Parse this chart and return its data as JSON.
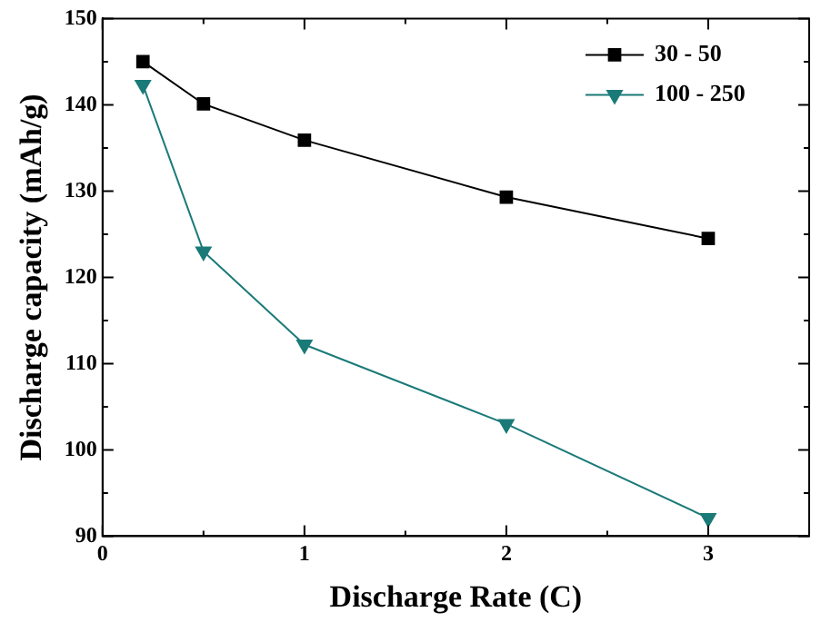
{
  "chart_data": {
    "type": "line",
    "xlabel": "Discharge Rate (C)",
    "ylabel": "Discharge capacity (mAh/g)",
    "xlim": [
      0,
      3.5
    ],
    "ylim": [
      90,
      150
    ],
    "xticks": [
      0,
      {
        "value": 0.5,
        "label": null
      },
      1,
      {
        "value": 1.5,
        "label": null
      },
      2,
      {
        "value": 2.5,
        "label": null
      },
      3
    ],
    "yticks": [
      90,
      {
        "value": 95,
        "label": null
      },
      100,
      {
        "value": 105,
        "label": null
      },
      110,
      {
        "value": 115,
        "label": null
      },
      120,
      {
        "value": 125,
        "label": null
      },
      130,
      {
        "value": 135,
        "label": null
      },
      140,
      {
        "value": 145,
        "label": null
      },
      150
    ],
    "x": [
      0.2,
      0.5,
      1,
      2,
      3
    ],
    "series": [
      {
        "name": "30 - 50",
        "color": "#000000",
        "marker": "square",
        "values": [
          145,
          140.1,
          135.9,
          129.3,
          124.5
        ]
      },
      {
        "name": "100 - 250",
        "color": "#1a7a78",
        "marker": "triangle",
        "values": [
          142.3,
          123,
          112.2,
          103,
          92.1
        ]
      }
    ],
    "grid": false,
    "legend": "top right",
    "line_style": "solid"
  }
}
